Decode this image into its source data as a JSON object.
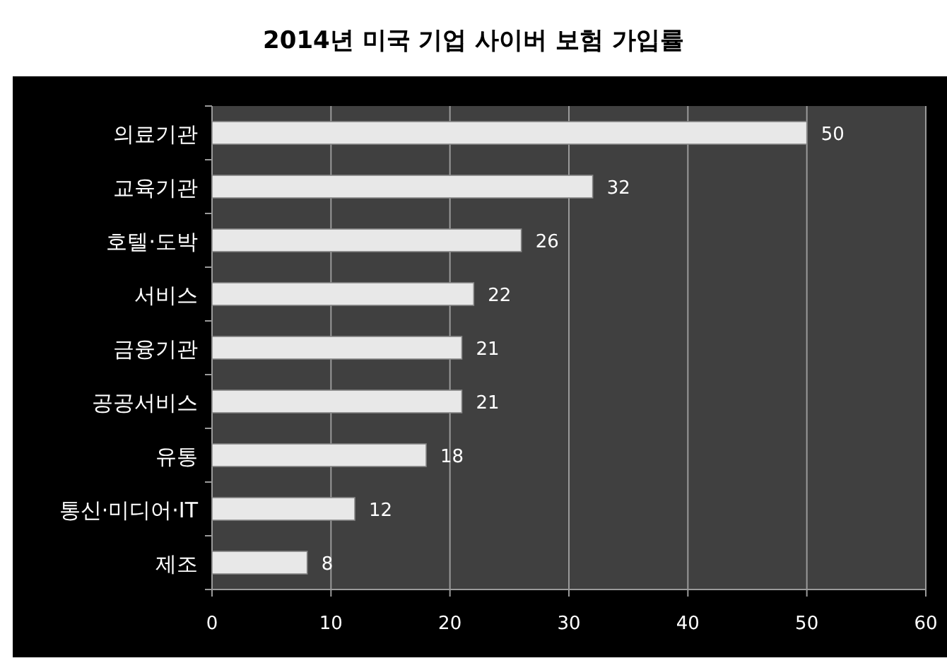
{
  "chart_data": {
    "type": "bar",
    "orientation": "horizontal",
    "title": "2014년 미국 기업 사이버 보험 가입률",
    "categories": [
      "의료기관",
      "교육기관",
      "호텔·도박",
      "서비스",
      "금융기관",
      "공공서비스",
      "유통",
      "통신·미디어·IT",
      "제조"
    ],
    "values": [
      50,
      32,
      26,
      22,
      21,
      21,
      18,
      12,
      8
    ],
    "color": "#e8e8e8",
    "xlim": [
      0,
      60
    ],
    "xticks": [
      0,
      10,
      20,
      30,
      40,
      50,
      60
    ],
    "grid": "x",
    "data_labels": true
  }
}
